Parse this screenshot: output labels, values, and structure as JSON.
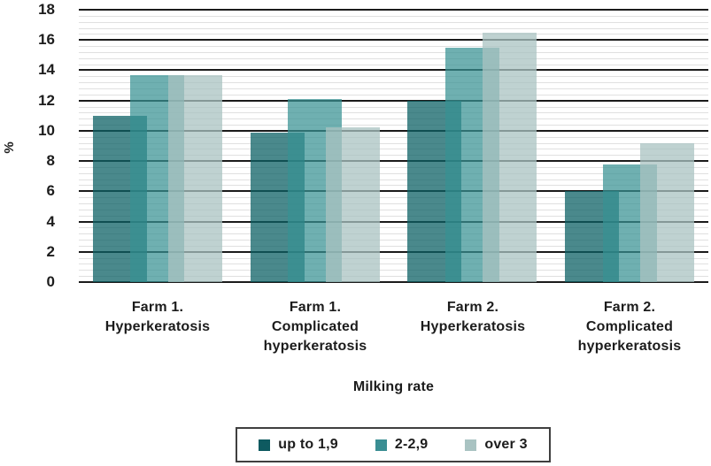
{
  "chart_data": {
    "type": "bar",
    "title": "",
    "xlabel": "Milking rate",
    "ylabel": "%",
    "ylim": [
      0,
      18
    ],
    "yticks": [
      0,
      2,
      4,
      6,
      8,
      10,
      12,
      14,
      16,
      18
    ],
    "ytick_step": 2,
    "minor_gridline_step": 0.4,
    "grid": {
      "major_color": "#1b1b1b",
      "minor_color": "#e0e0e0",
      "horizontal": true
    },
    "legend_position": "bottom",
    "legend_border_color": "#3f3f3f",
    "categories": [
      {
        "lines": [
          "Farm 1.",
          "Hyperkeratosis"
        ]
      },
      {
        "lines": [
          "Farm 1.",
          "Complicated",
          "hyperkeratosis"
        ]
      },
      {
        "lines": [
          "Farm 2.",
          "Hyperkeratosis"
        ]
      },
      {
        "lines": [
          "Farm 2.",
          "Complicated",
          "hyperkeratosis"
        ]
      }
    ],
    "series": [
      {
        "name": "up to 1,9",
        "legend_color": "#0E5A60",
        "bar_color": "rgba(14,97,102,0.75)",
        "values": [
          11.0,
          9.9,
          12.0,
          6.0
        ]
      },
      {
        "name": "2-2,9",
        "legend_color": "#3A8E93",
        "bar_color": "rgba(55,145,147,0.72)",
        "values": [
          13.7,
          12.1,
          15.5,
          7.8
        ]
      },
      {
        "name": "over 3",
        "legend_color": "#A9C3C2",
        "bar_color": "rgba(169,195,194,0.75)",
        "values": [
          13.7,
          10.25,
          16.5,
          9.2
        ]
      }
    ]
  }
}
